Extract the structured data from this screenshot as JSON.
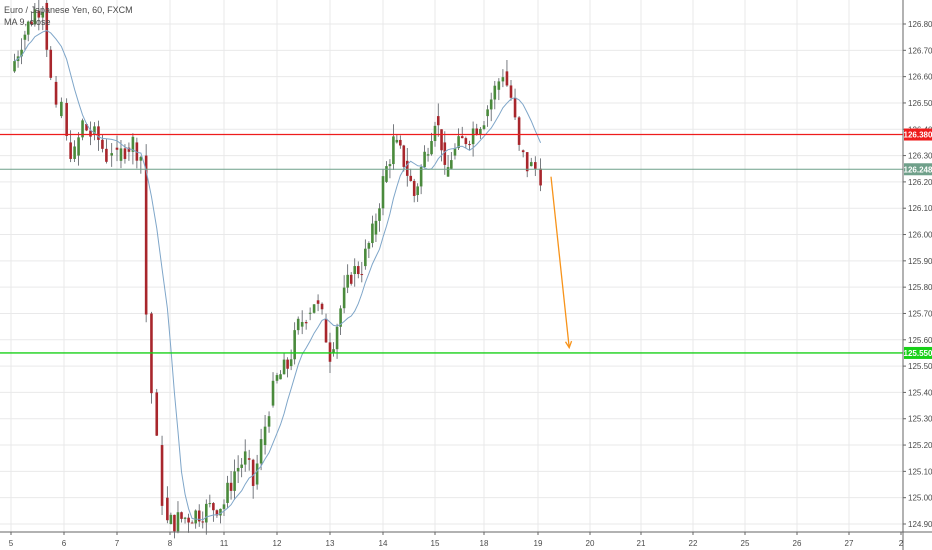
{
  "header": {
    "symbol_title": "Euro / Japanese Yen, 60, FXCM",
    "indicator_label": "MA 9, close"
  },
  "colors": {
    "candle_up": "#4a8a3c",
    "candle_down": "#a8262c",
    "ma_line": "#7fa6c9",
    "resistance": "#ee1c1c",
    "support": "#18d018",
    "last_price": "#6fa08a",
    "projection_arrow": "#f7931a",
    "grid": "#e9e9ea"
  },
  "price_axis": {
    "ticks": [
      "126.800",
      "126.700",
      "126.600",
      "126.500",
      "126.400",
      "126.300",
      "126.200",
      "126.100",
      "126.000",
      "125.900",
      "125.800",
      "125.700",
      "125.600",
      "125.500",
      "125.400",
      "125.300",
      "125.200",
      "125.100",
      "125.000",
      "124.900"
    ]
  },
  "time_axis": {
    "ticks": [
      "5",
      "6",
      "7",
      "8",
      "11",
      "12",
      "13",
      "14",
      "15",
      "18",
      "19",
      "20",
      "21",
      "22",
      "25",
      "26",
      "27",
      "2"
    ]
  },
  "levels": {
    "resistance_label": "126.380",
    "last_price_label": "126.248",
    "support_label": "125.550"
  },
  "chart_data": {
    "type": "candlestick",
    "title": "Euro / Japanese Yen, 60, FXCM",
    "ylim": [
      124.87,
      126.89
    ],
    "y_ticks": [
      124.9,
      125.0,
      125.1,
      125.2,
      125.3,
      125.4,
      125.5,
      125.6,
      125.7,
      125.8,
      125.9,
      126.0,
      126.1,
      126.2,
      126.3,
      126.4,
      126.5,
      126.6,
      126.7,
      126.8
    ],
    "x_categories": [
      "5",
      "6",
      "7",
      "8",
      "11",
      "12",
      "13",
      "14",
      "15",
      "18",
      "19",
      "20",
      "21",
      "22",
      "25",
      "26",
      "27",
      "2"
    ],
    "series": [
      {
        "name": "EURJPY",
        "close_path": [
          [
            5.0,
            126.62
          ],
          [
            5.2,
            126.74
          ],
          [
            5.45,
            126.85
          ],
          [
            5.6,
            126.88
          ],
          [
            5.75,
            126.58
          ],
          [
            5.85,
            126.45
          ],
          [
            5.95,
            126.5
          ],
          [
            6.05,
            126.35
          ],
          [
            6.2,
            126.3
          ],
          [
            6.35,
            126.42
          ],
          [
            6.5,
            126.38
          ],
          [
            6.65,
            126.36
          ],
          [
            6.8,
            126.3
          ],
          [
            6.9,
            126.33
          ],
          [
            7.0,
            126.28
          ],
          [
            7.15,
            126.33
          ],
          [
            7.3,
            126.35
          ],
          [
            7.45,
            126.3
          ],
          [
            7.55,
            125.7
          ],
          [
            7.65,
            125.4
          ],
          [
            7.75,
            125.2
          ],
          [
            7.85,
            125.0
          ],
          [
            7.95,
            124.9
          ],
          [
            11.0,
            124.98
          ],
          [
            11.2,
            125.1
          ],
          [
            11.4,
            125.15
          ],
          [
            11.55,
            125.05
          ],
          [
            11.7,
            125.2
          ],
          [
            11.85,
            125.35
          ],
          [
            12.0,
            125.45
          ],
          [
            12.2,
            125.5
          ],
          [
            12.4,
            125.65
          ],
          [
            12.55,
            125.7
          ],
          [
            12.7,
            125.75
          ],
          [
            12.85,
            125.68
          ],
          [
            13.0,
            125.55
          ],
          [
            13.2,
            125.72
          ],
          [
            13.4,
            125.85
          ],
          [
            13.6,
            125.88
          ],
          [
            13.8,
            126.0
          ],
          [
            14.0,
            126.2
          ],
          [
            14.2,
            126.35
          ],
          [
            14.4,
            126.28
          ],
          [
            14.6,
            126.15
          ],
          [
            14.8,
            126.3
          ],
          [
            15.0,
            126.45
          ],
          [
            15.2,
            126.4
          ],
          [
            15.4,
            126.35
          ],
          [
            15.6,
            126.22
          ],
          [
            15.8,
            126.25
          ],
          [
            16.0,
            126.3
          ],
          [
            18.0,
            126.45
          ],
          [
            18.2,
            126.55
          ],
          [
            18.35,
            126.62
          ],
          [
            18.5,
            126.52
          ],
          [
            18.65,
            126.32
          ],
          [
            18.8,
            126.26
          ],
          [
            18.95,
            126.25
          ],
          [
            19.05,
            126.23
          ]
        ]
      },
      {
        "name": "MA 9, close"
      }
    ],
    "horizontal_levels": [
      {
        "value": 126.38,
        "label": "126.380",
        "kind": "resistance"
      },
      {
        "value": 126.248,
        "label": "126.248",
        "kind": "last_price"
      },
      {
        "value": 125.55,
        "label": "125.550",
        "kind": "support"
      }
    ],
    "projection_arrow": {
      "from": [
        19.25,
        126.22
      ],
      "to": [
        19.6,
        125.57
      ]
    },
    "grid": true
  }
}
